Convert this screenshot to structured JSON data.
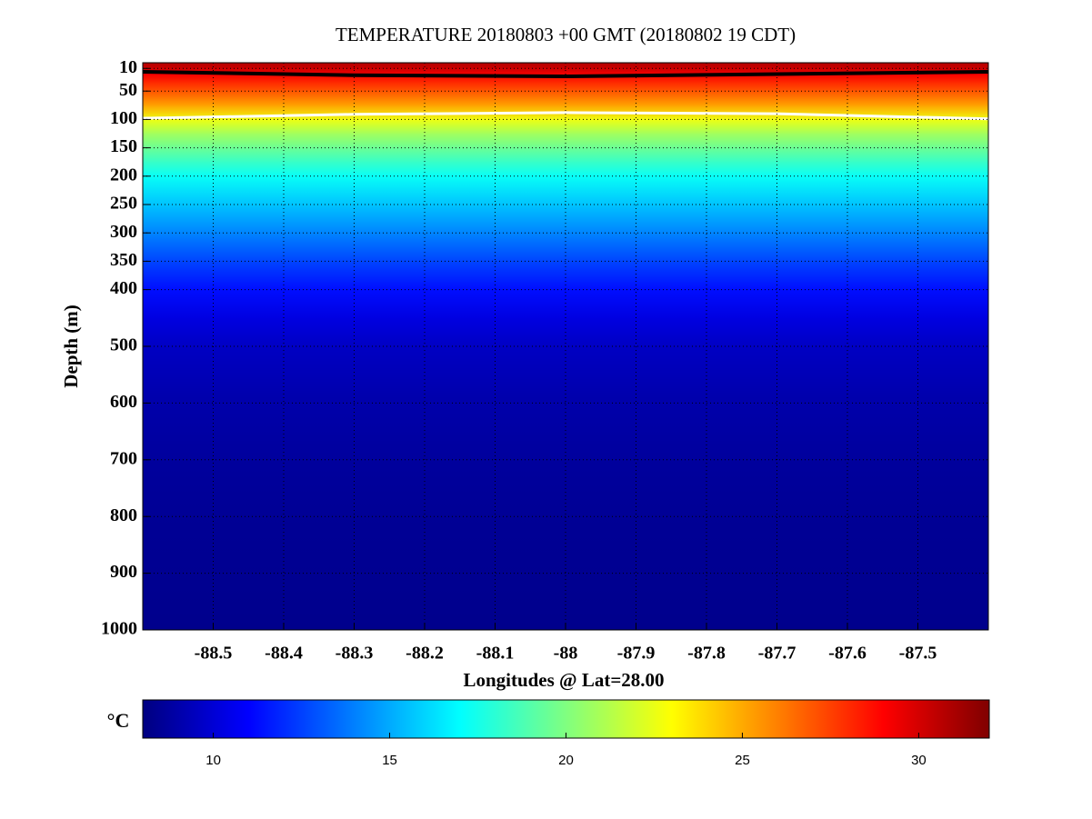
{
  "chart_data": {
    "type": "section",
    "title": "TEMPERATURE 20180803 +00 GMT (20180802 19 CDT)",
    "x_label": "Longitudes @ Lat=28.00",
    "y_label": "Depth (m)",
    "xlim": [
      -88.6,
      -87.4
    ],
    "xticks": [
      -88.5,
      -88.4,
      -88.3,
      -88.2,
      -88.1,
      -88,
      -87.9,
      -87.8,
      -87.7,
      -87.6,
      -87.5
    ],
    "ylim": [
      0,
      1000
    ],
    "y_reversed": true,
    "yticks": [
      10,
      50,
      100,
      150,
      200,
      250,
      300,
      350,
      400,
      500,
      600,
      700,
      800,
      900,
      1000
    ],
    "grid": true,
    "depths": [
      0,
      10,
      20,
      35,
      50,
      75,
      100,
      125,
      150,
      175,
      200,
      250,
      300,
      350,
      400,
      450,
      500,
      600,
      700,
      800,
      900,
      1000
    ],
    "values": [
      30.8,
      30.2,
      29.2,
      28,
      27,
      25.2,
      22.6,
      20.8,
      19.5,
      18.3,
      17.2,
      15.6,
      14.1,
      12.6,
      11.3,
      10.3,
      9.6,
      9.0,
      8.7,
      8.5,
      8.4,
      8.3
    ],
    "contours": [
      {
        "color": "#000000",
        "x": [
          -88.6,
          -88.3,
          -88.0,
          -87.7,
          -87.4
        ],
        "depths": [
          16,
          22,
          24,
          20,
          16
        ]
      },
      {
        "color": "#ffffff",
        "x": [
          -88.6,
          -88.3,
          -88.0,
          -87.7,
          -87.4
        ],
        "depths": [
          98,
          91,
          88,
          90,
          99
        ]
      }
    ],
    "colorbar": {
      "label": "°C",
      "clim": [
        8,
        32
      ],
      "ticks": [
        10,
        15,
        20,
        25,
        30
      ]
    }
  }
}
